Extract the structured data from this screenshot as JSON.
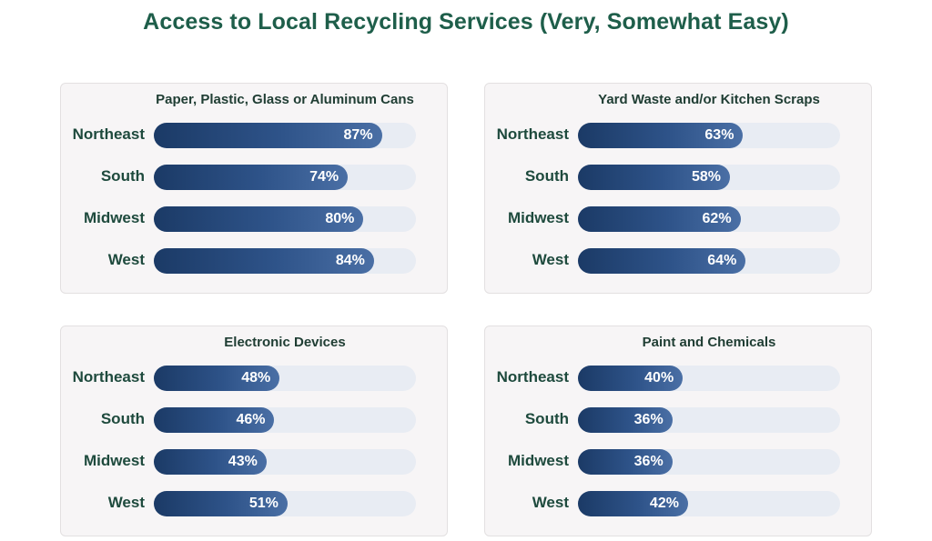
{
  "chart_data": {
    "title": "Access to Local Recycling Services (Very, Somewhat Easy)",
    "type": "bar",
    "unit": "%",
    "xlim": [
      0,
      100
    ],
    "panels": [
      {
        "title": "Paper, Plastic, Glass or Aluminum Cans",
        "categories": [
          "Northeast",
          "South",
          "Midwest",
          "West"
        ],
        "values": [
          87,
          74,
          80,
          84
        ],
        "labels": [
          "87%",
          "74%",
          "80%",
          "84%"
        ]
      },
      {
        "title": "Yard Waste and/or Kitchen Scraps",
        "categories": [
          "Northeast",
          "South",
          "Midwest",
          "West"
        ],
        "values": [
          63,
          58,
          62,
          64
        ],
        "labels": [
          "63%",
          "58%",
          "62%",
          "64%"
        ]
      },
      {
        "title": "Electronic Devices",
        "categories": [
          "Northeast",
          "South",
          "Midwest",
          "West"
        ],
        "values": [
          48,
          46,
          43,
          51
        ],
        "labels": [
          "48%",
          "46%",
          "43%",
          "51%"
        ]
      },
      {
        "title": "Paint and Chemicals",
        "categories": [
          "Northeast",
          "South",
          "Midwest",
          "West"
        ],
        "values": [
          40,
          36,
          36,
          42
        ],
        "labels": [
          "40%",
          "36%",
          "36%",
          "42%"
        ]
      }
    ]
  },
  "colors": {
    "title": "#1e5e4a",
    "bar_start": "#1b3a66",
    "bar_end": "#4a6fa5",
    "track": "#e8ecf3"
  }
}
